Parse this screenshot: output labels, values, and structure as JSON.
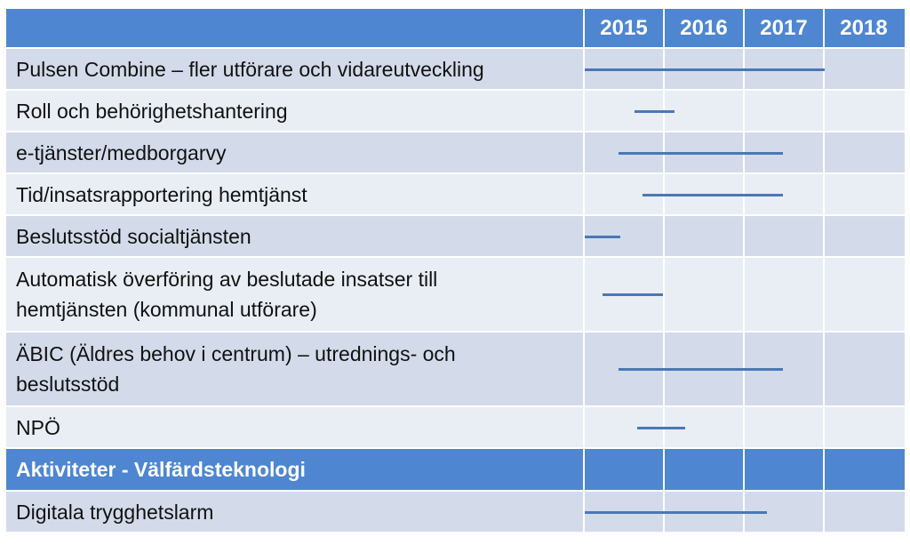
{
  "years": [
    "2015",
    "2016",
    "2017",
    "2018"
  ],
  "section_title": "Aktiviteter - Välfärdsteknologi",
  "chart_data": {
    "type": "gantt",
    "x_unit": "year",
    "xlim": [
      2015,
      2018
    ],
    "colors": {
      "header": "#4f86d1",
      "bar": "#4a78b5",
      "row_dark": "#d3dbea",
      "row_light": "#e9edf4"
    },
    "tasks": [
      {
        "label": "Pulsen Combine – fler utförare och vidareutveckling",
        "start": 2015.0,
        "end": 2018.0
      },
      {
        "label": "Roll och behörighetshantering",
        "start": 2015.62,
        "end": 2016.12
      },
      {
        "label": "e-tjänster/medborgarvy",
        "start": 2015.42,
        "end": 2017.48
      },
      {
        "label": "Tid/insatsrapportering hemtjänst",
        "start": 2015.72,
        "end": 2017.48
      },
      {
        "label": "Beslutsstöd socialtjänsten",
        "start": 2015.0,
        "end": 2015.44
      },
      {
        "label": "Automatisk överföring av beslutade insatser till\nhemtjänsten (kommunal utförare)",
        "start": 2015.22,
        "end": 2015.98
      },
      {
        "label": "ÄBIC (Äldres behov i centrum) – utrednings- och\nbeslutsstöd",
        "start": 2015.42,
        "end": 2017.48
      },
      {
        "label": "NPÖ",
        "start": 2015.65,
        "end": 2016.25
      }
    ],
    "section_tasks": [
      {
        "label": "Digitala trygghetslarm",
        "start": 2015.0,
        "end": 2017.28
      }
    ]
  }
}
